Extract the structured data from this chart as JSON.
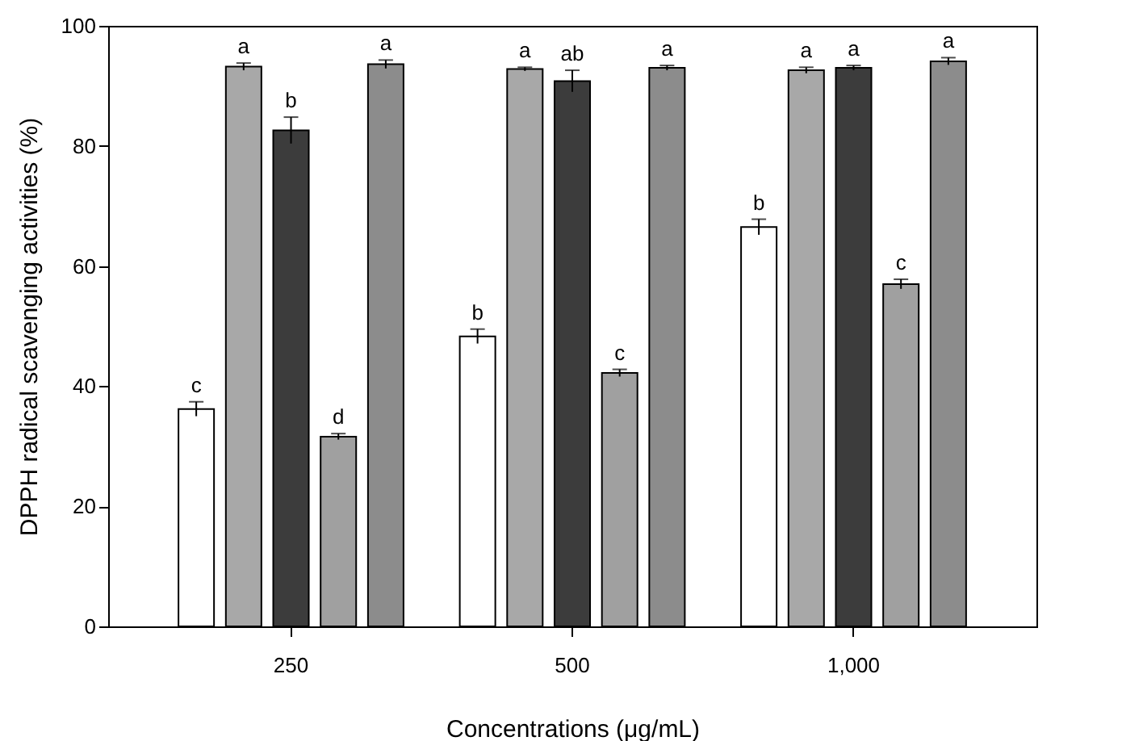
{
  "chart_data": {
    "type": "bar",
    "xlabel": "Concentrations (μg/mL)",
    "ylabel": "DPPH radical scavenging activities (%)",
    "categories": [
      "250",
      "500",
      "1,000"
    ],
    "ylim": [
      0,
      100
    ],
    "yticks": [
      0,
      20,
      40,
      60,
      80,
      100
    ],
    "grid": false,
    "legend": false,
    "series": [
      {
        "color": "#ffffff",
        "values": [
          36.2,
          48.3,
          66.5
        ],
        "errors": [
          1.2,
          1.2,
          1.3
        ],
        "value_labels": [
          "c",
          "b",
          "b"
        ]
      },
      {
        "color": "#a8a8a8",
        "values": [
          93.2,
          92.8,
          92.6
        ],
        "errors": [
          0.6,
          0.3,
          0.5
        ],
        "value_labels": [
          "a",
          "a",
          "a"
        ]
      },
      {
        "color": "#3c3c3c",
        "values": [
          82.6,
          90.8,
          93.0
        ],
        "errors": [
          2.2,
          1.8,
          0.4
        ],
        "value_labels": [
          "b",
          "ab",
          "a"
        ]
      },
      {
        "color": "#a0a0a0",
        "values": [
          31.6,
          42.2,
          57.0
        ],
        "errors": [
          0.5,
          0.6,
          0.8
        ],
        "value_labels": [
          "d",
          "c",
          "c"
        ]
      },
      {
        "color": "#8c8c8c",
        "values": [
          93.6,
          93.0,
          94.1
        ],
        "errors": [
          0.7,
          0.4,
          0.6
        ],
        "value_labels": [
          "a",
          "a",
          "a"
        ]
      }
    ]
  }
}
